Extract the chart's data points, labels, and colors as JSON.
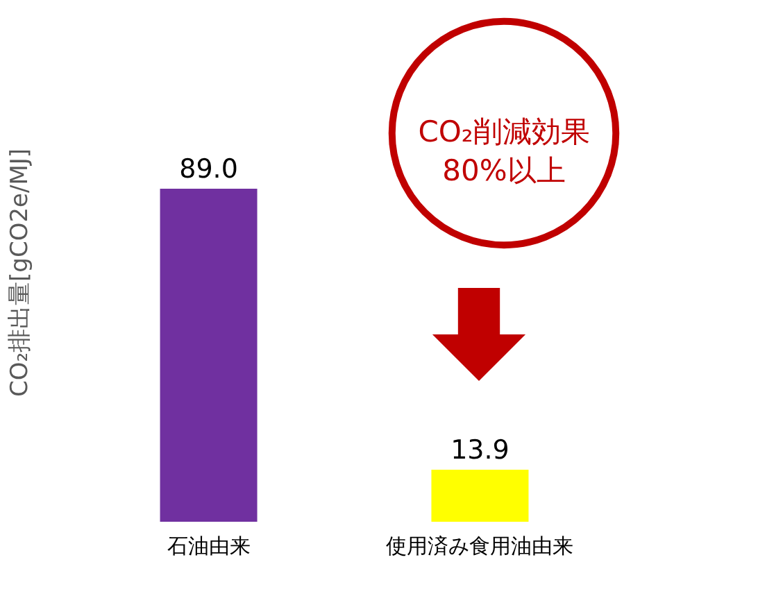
{
  "chart_data": {
    "type": "bar",
    "ylabel": "CO₂排出量[gCO2e/MJ]",
    "categories": [
      "石油由来",
      "使用済み食用油由来"
    ],
    "values": [
      89.0,
      13.9
    ],
    "colors": [
      "#7030a0",
      "#ffff00"
    ],
    "value_labels": [
      "89.0",
      "13.9"
    ],
    "annotations": [
      "CO₂削減効果\n80%以上"
    ]
  }
}
